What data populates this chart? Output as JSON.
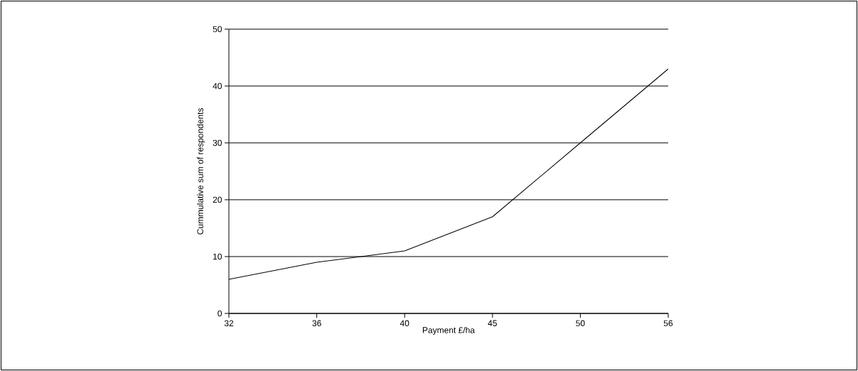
{
  "chart_data": {
    "type": "line",
    "xlabel": "Payment £/ha",
    "ylabel": "Cummulative sum of respondents",
    "categories": [
      "32",
      "36",
      "40",
      "45",
      "50",
      "56"
    ],
    "values": [
      6,
      9,
      11,
      17,
      30,
      43
    ],
    "color": "#000000",
    "ylim": [
      0,
      50
    ],
    "yticks": [
      0,
      10,
      20,
      30,
      40,
      50
    ],
    "grid": "y",
    "marker": "none",
    "line_style": "solid"
  }
}
